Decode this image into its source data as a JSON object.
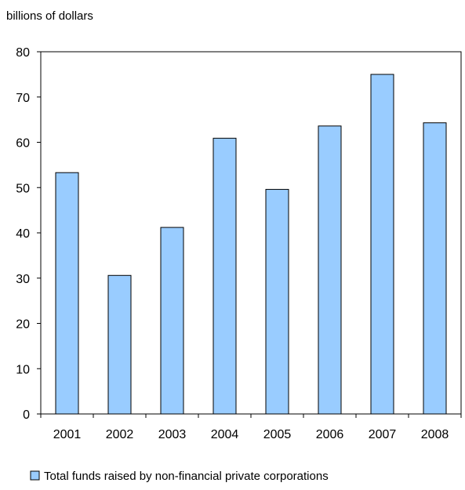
{
  "chart_data": {
    "type": "bar",
    "ylabel": "billions of dollars",
    "xlabel": "",
    "title": "",
    "categories": [
      "2001",
      "2002",
      "2003",
      "2004",
      "2005",
      "2006",
      "2007",
      "2008"
    ],
    "series": [
      {
        "name": "Total funds raised by non-financial private corporations",
        "values": [
          53.3,
          30.6,
          41.2,
          60.9,
          49.6,
          63.6,
          75.0,
          64.3
        ],
        "color": "#99CCFF"
      }
    ],
    "ylim": [
      0,
      80
    ],
    "yticks": [
      "0",
      "10",
      "20",
      "30",
      "40",
      "50",
      "60",
      "70",
      "80"
    ],
    "grid": false,
    "legend_position": "bottom"
  }
}
